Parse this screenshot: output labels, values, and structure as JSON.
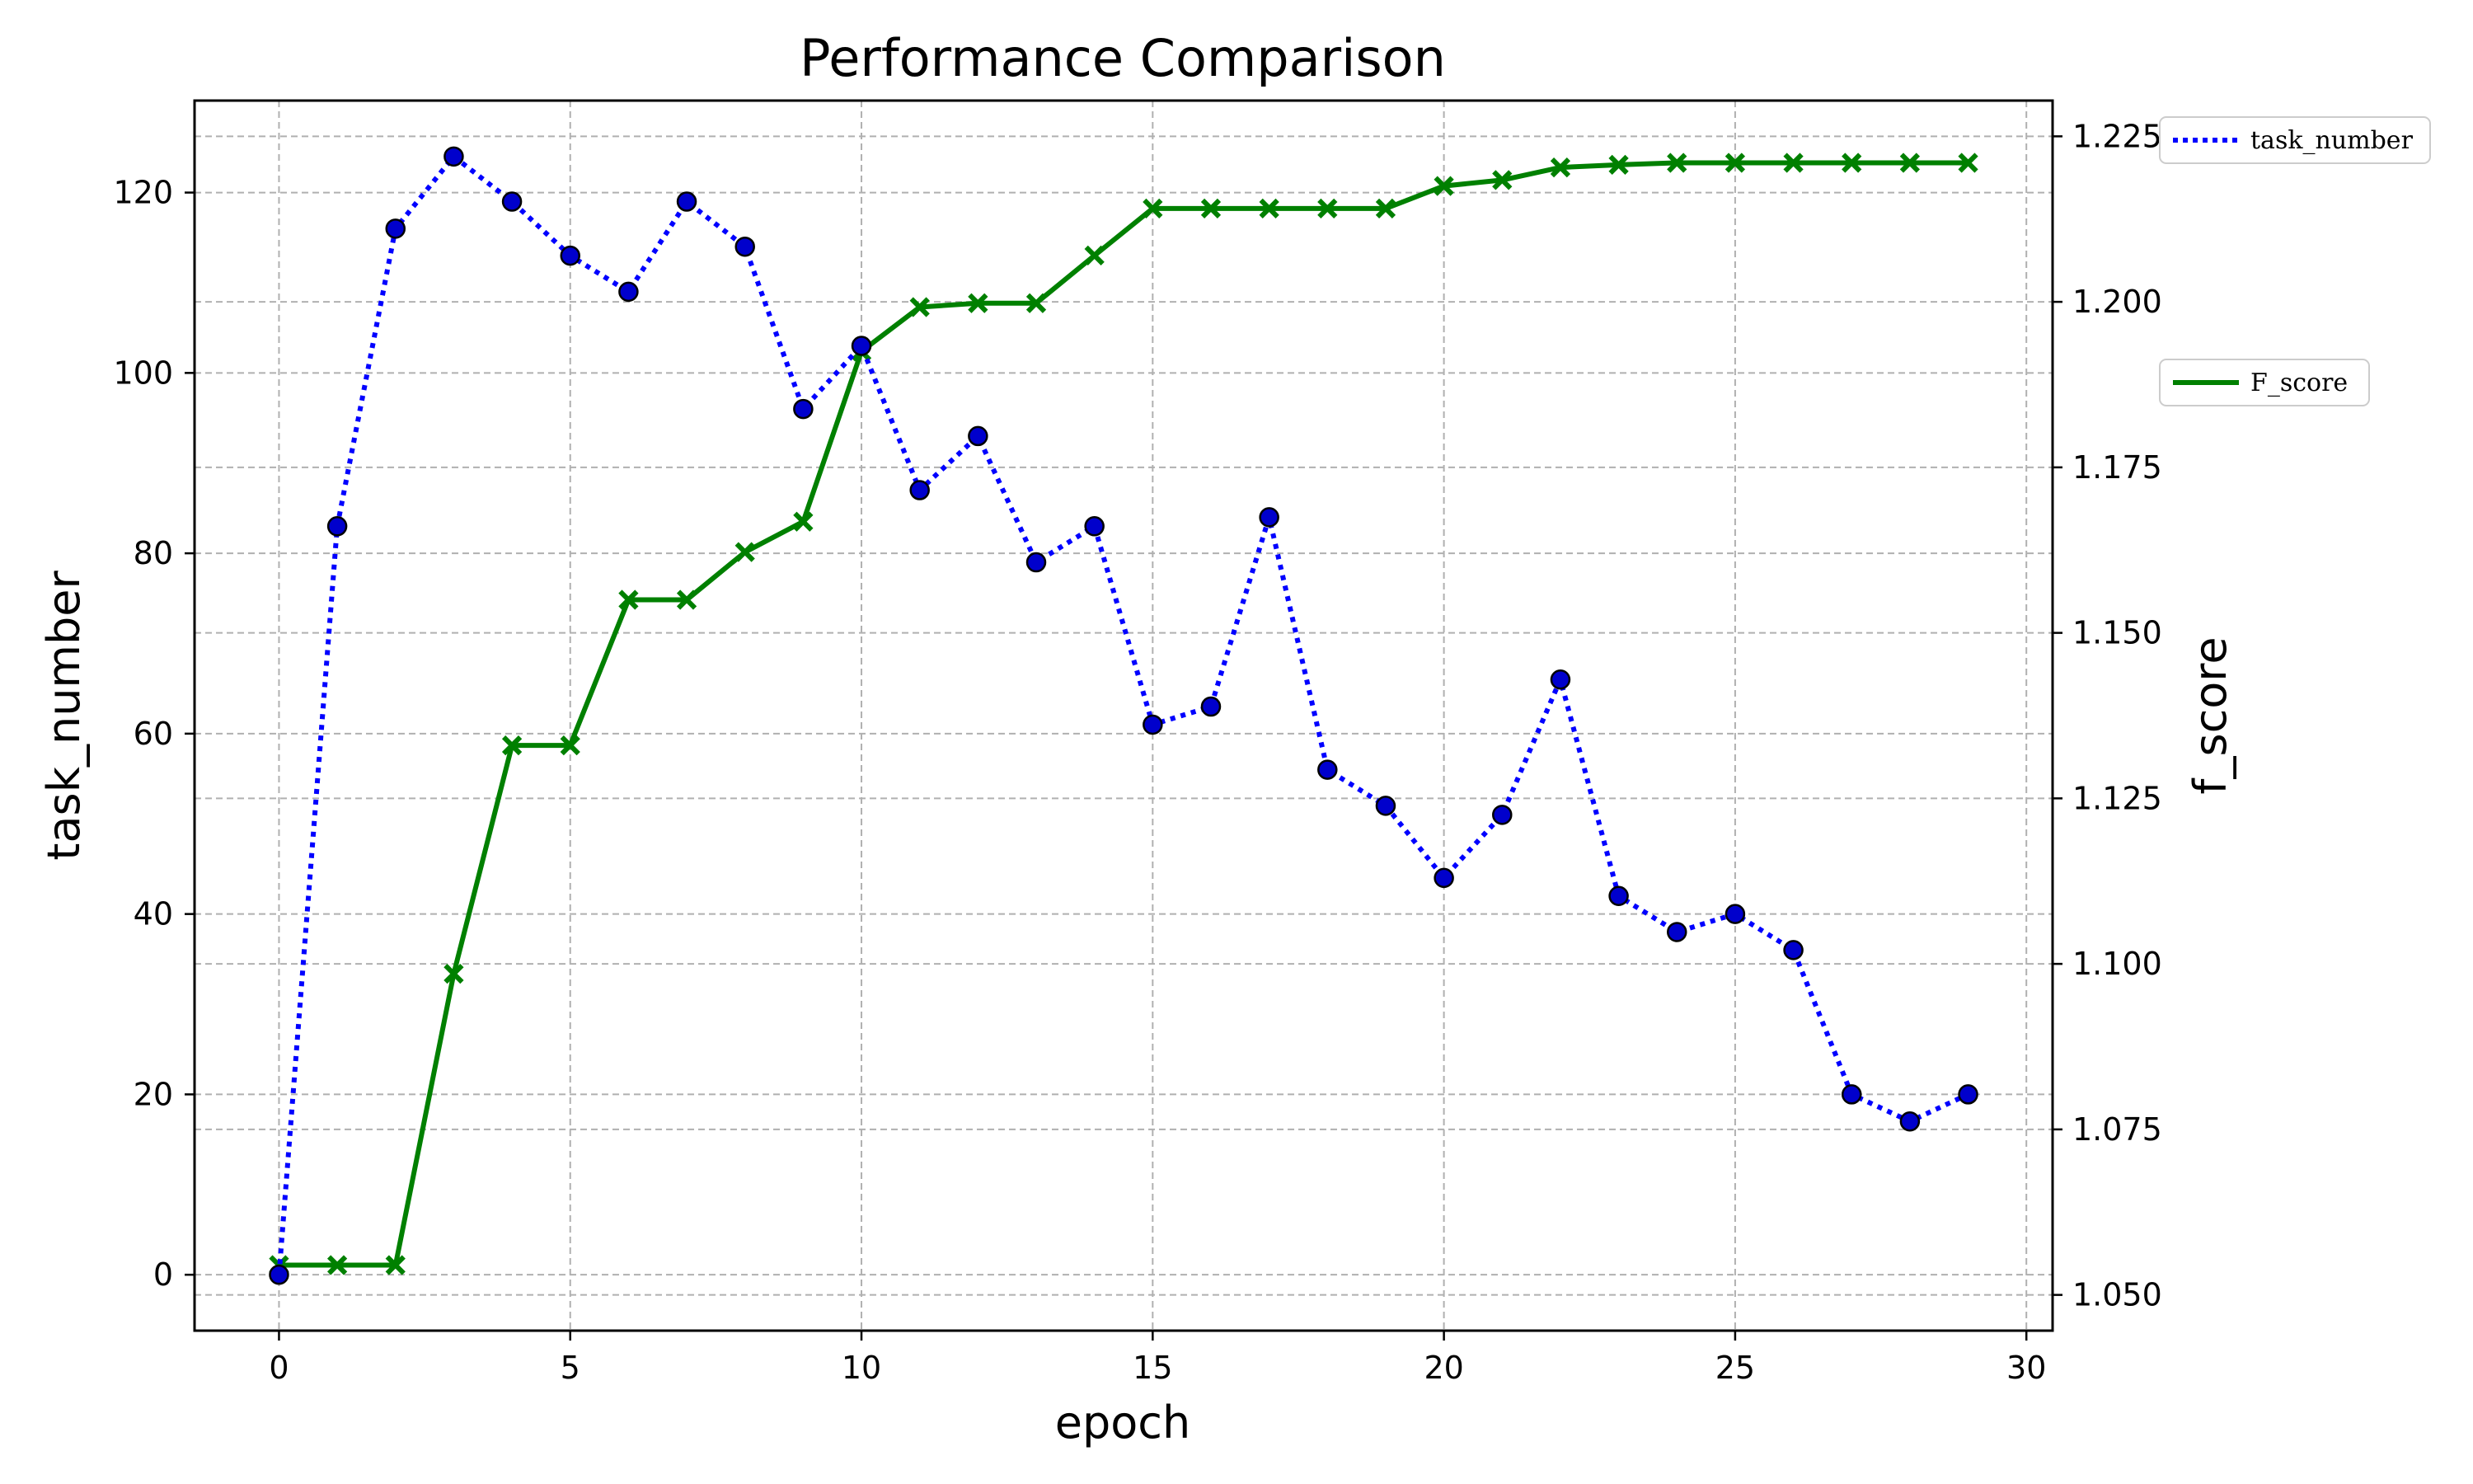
{
  "chart_data": {
    "type": "line",
    "title": "Performance Comparison",
    "xlabel": "epoch",
    "ylabel_left": "task_number",
    "ylabel_right": "f_score",
    "xlim": [
      -1.45,
      30.45
    ],
    "ylim_left": [
      -6.2,
      130.2
    ],
    "ylim_right": [
      1.0446,
      1.2304
    ],
    "x_ticks": [
      0,
      5,
      10,
      15,
      20,
      25,
      30
    ],
    "y_left_ticks": [
      0,
      20,
      40,
      60,
      80,
      100,
      120
    ],
    "y_right_ticks": [
      1.05,
      1.075,
      1.1,
      1.125,
      1.15,
      1.175,
      1.2,
      1.225
    ],
    "y_right_tick_labels": [
      "1.050",
      "1.075",
      "1.100",
      "1.125",
      "1.150",
      "1.175",
      "1.200",
      "1.225"
    ],
    "grid": true,
    "x": [
      0,
      1,
      2,
      3,
      4,
      5,
      6,
      7,
      8,
      9,
      10,
      11,
      12,
      13,
      14,
      15,
      16,
      17,
      18,
      19,
      20,
      21,
      22,
      23,
      24,
      25,
      26,
      27,
      28,
      29
    ],
    "series": [
      {
        "name": "task_number",
        "axis": "left",
        "color": "#0000ff",
        "marker_color": "#0000cc",
        "line_style": "dotted",
        "marker": "circle",
        "legend_position": "top-right",
        "values": [
          0,
          83,
          116,
          124,
          119,
          113,
          109,
          119,
          114,
          96,
          103,
          87,
          93,
          79,
          83,
          61,
          63,
          84,
          56,
          52,
          44,
          51,
          66,
          42,
          38,
          40,
          36,
          20,
          17,
          20
        ]
      },
      {
        "name": "F_score",
        "axis": "right",
        "color": "#008000",
        "line_style": "solid",
        "marker": "x",
        "legend_position": "center-right",
        "values": [
          1.0545,
          1.0545,
          1.0545,
          1.0985,
          1.133,
          1.133,
          1.155,
          1.155,
          1.1622,
          1.1668,
          1.1925,
          1.1992,
          1.1998,
          1.1998,
          1.207,
          1.2141,
          1.2141,
          1.2141,
          1.2141,
          1.2141,
          1.2175,
          1.2184,
          1.2203,
          1.2207,
          1.221,
          1.221,
          1.221,
          1.221,
          1.221,
          1.221
        ]
      }
    ]
  }
}
